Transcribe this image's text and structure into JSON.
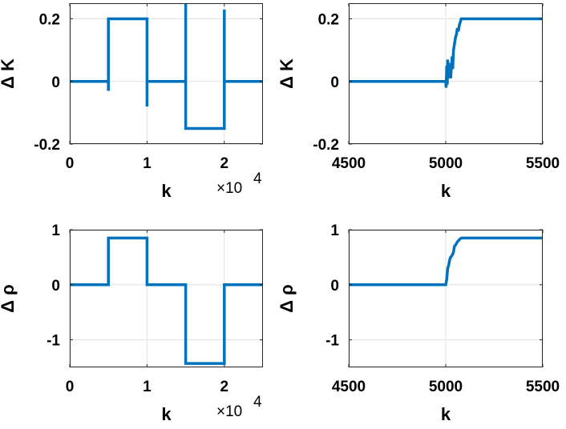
{
  "chart_data": [
    {
      "type": "line",
      "xlabel": "k",
      "ylabel": "Δ K",
      "xlim": [
        0,
        25000
      ],
      "ylim": [
        -0.2,
        0.25
      ],
      "xticks": [
        0,
        10000,
        20000
      ],
      "xtick_labels": [
        "0",
        "1",
        "2"
      ],
      "x_exponent_label": "×10",
      "x_exponent": "4",
      "yticks": [
        -0.2,
        0,
        0.2
      ],
      "ytick_labels": [
        "-0.2",
        "0",
        "0.2"
      ],
      "grid": true,
      "color": "#0072BD",
      "series": [
        {
          "x": [
            0,
            5000,
            5000,
            5000,
            5000,
            10000,
            10000,
            10000,
            10000,
            15000,
            15000,
            15000,
            20000,
            20000,
            20000,
            25000
          ],
          "y": [
            0,
            0,
            -0.03,
            0.2,
            0.2,
            0.2,
            -0.08,
            0,
            0,
            0,
            0.25,
            -0.15,
            -0.15,
            0.23,
            0,
            0
          ]
        }
      ]
    },
    {
      "type": "line",
      "xlabel": "k",
      "ylabel": "Δ K",
      "xlim": [
        4500,
        5500
      ],
      "ylim": [
        -0.2,
        0.25
      ],
      "xticks": [
        4500,
        5000,
        5500
      ],
      "xtick_labels": [
        "4500",
        "5000",
        "5500"
      ],
      "yticks": [
        -0.2,
        0,
        0.2
      ],
      "ytick_labels": [
        "-0.2",
        "0",
        "0.2"
      ],
      "grid": true,
      "color": "#0072BD",
      "series": [
        {
          "x": [
            4500,
            5000,
            5002,
            5005,
            5008,
            5010,
            5012,
            5015,
            5018,
            5022,
            5025,
            5030,
            5033,
            5036,
            5040,
            5045,
            5050,
            5055,
            5060,
            5065,
            5070,
            5075,
            5080,
            5500
          ],
          "y": [
            0,
            0,
            -0.02,
            0.05,
            -0.01,
            0.07,
            0.01,
            0.06,
            0.02,
            0.04,
            0.01,
            0.05,
            0.08,
            0.04,
            0.1,
            0.12,
            0.14,
            0.15,
            0.17,
            0.16,
            0.18,
            0.19,
            0.2,
            0.2
          ]
        }
      ]
    },
    {
      "type": "line",
      "xlabel": "k",
      "ylabel": "Δ ρ",
      "xlim": [
        0,
        25000
      ],
      "ylim": [
        -1.5,
        1
      ],
      "xticks": [
        0,
        10000,
        20000
      ],
      "xtick_labels": [
        "0",
        "1",
        "2"
      ],
      "x_exponent_label": "×10",
      "x_exponent": "4",
      "yticks": [
        -1,
        0,
        1
      ],
      "ytick_labels": [
        "-1",
        "0",
        "1"
      ],
      "grid": true,
      "color": "#0072BD",
      "series": [
        {
          "x": [
            0,
            5000,
            5000,
            10000,
            10000,
            15000,
            15000,
            20000,
            20000,
            25000
          ],
          "y": [
            0,
            0,
            0.85,
            0.85,
            0,
            0,
            -1.43,
            -1.43,
            0,
            0
          ]
        }
      ]
    },
    {
      "type": "line",
      "xlabel": "k",
      "ylabel": "Δ ρ",
      "xlim": [
        4500,
        5500
      ],
      "ylim": [
        -1.5,
        1
      ],
      "xticks": [
        4500,
        5000,
        5500
      ],
      "xtick_labels": [
        "4500",
        "5000",
        "5500"
      ],
      "yticks": [
        -1,
        0,
        1
      ],
      "ytick_labels": [
        "-1",
        "0",
        "1"
      ],
      "grid": true,
      "color": "#0072BD",
      "series": [
        {
          "x": [
            4500,
            5000,
            5005,
            5010,
            5015,
            5020,
            5025,
            5030,
            5035,
            5040,
            5045,
            5050,
            5055,
            5060,
            5065,
            5070,
            5080,
            5500
          ],
          "y": [
            0,
            0,
            0.1,
            0.3,
            0.35,
            0.45,
            0.5,
            0.52,
            0.55,
            0.6,
            0.7,
            0.72,
            0.75,
            0.78,
            0.8,
            0.82,
            0.85,
            0.85
          ]
        }
      ]
    }
  ]
}
